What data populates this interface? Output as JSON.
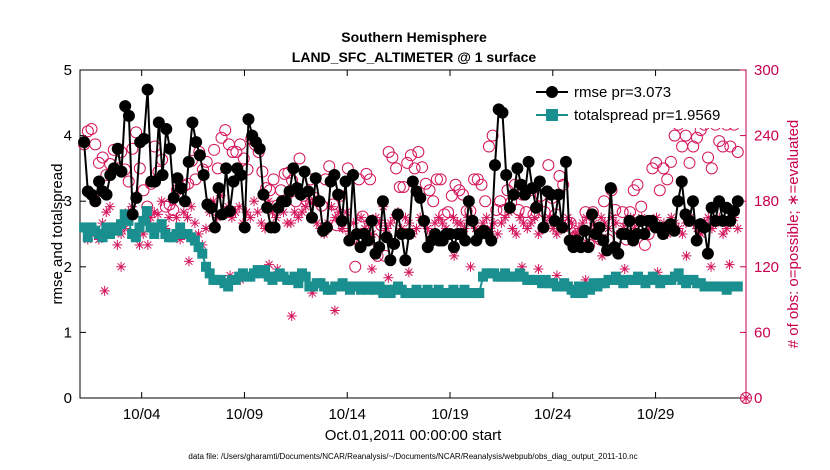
{
  "chart_data": {
    "type": "line",
    "title": "Southern Hemisphere",
    "subtitle": "LAND_SFC_ALTIMETER @ 1 surface",
    "xlabel": "Oct.01,2011 00:00:00 start",
    "ylabel": "rmse and totalspread",
    "ylabel_right": "# of obs: o=possible; ∗=evaluated",
    "footnote": "data file: /Users/gharamti/Documents/NCAR/Reanalysis/~/Documents/NCAR/Reanalysis/webpub/obs_diag_output_2011-10.nc",
    "xlim": [
      1,
      33.4
    ],
    "ylim": [
      0,
      5
    ],
    "ylim_right": [
      0,
      300
    ],
    "x_ticks": [
      4,
      9,
      14,
      19,
      24,
      29
    ],
    "x_tick_labels": [
      "10/04",
      "10/09",
      "10/14",
      "10/19",
      "10/24",
      "10/29"
    ],
    "y_ticks": [
      0,
      1,
      2,
      3,
      4,
      5
    ],
    "y_tick_labels": [
      "0",
      "1",
      "2",
      "3",
      "4",
      "5"
    ],
    "y_ticks_right": [
      0,
      60,
      120,
      180,
      240,
      300
    ],
    "y_tick_labels_right": [
      "0",
      "60",
      "120",
      "180",
      "240",
      "300"
    ],
    "grid": false,
    "legend_position": "top-right",
    "colors": {
      "rmse": "#000000",
      "totalspread": "#1a8f8f",
      "obs": "#d4145a"
    },
    "series": [
      {
        "name": "rmse pr=3.073",
        "axis": "left",
        "values": [
          3.9,
          3.15,
          3.1,
          3.0,
          3.3,
          3.15,
          3.1,
          3.4,
          3.5,
          3.8,
          3.45,
          4.45,
          4.3,
          2.8,
          3.05,
          3.9,
          3.95,
          4.7,
          3.3,
          3.3,
          4.2,
          3.4,
          4.1,
          3.8,
          3.05,
          3.35,
          3.2,
          3.0,
          3.6,
          4.2,
          3.9,
          3.7,
          3.4,
          2.95,
          2.9,
          2.6,
          3.2,
          2.8,
          3.5,
          2.85,
          3.3,
          3.5,
          3.4,
          2.6,
          4.25,
          4.0,
          3.9,
          3.8,
          3.1,
          2.9,
          2.6,
          2.6,
          2.9,
          3.0,
          3.0,
          3.15,
          3.5,
          3.2,
          3.1,
          3.45,
          3.15,
          2.75,
          3.35,
          3.0,
          2.55,
          2.6,
          3.3,
          3.4,
          3.1,
          2.7,
          3.3,
          2.4,
          3.4,
          2.5,
          2.3,
          2.5,
          2.4,
          2.7,
          2.2,
          2.3,
          3.0,
          2.45,
          2.1,
          2.35,
          2.8,
          2.5,
          2.1,
          2.5,
          3.3,
          3.15,
          3.05,
          2.7,
          2.3,
          2.4,
          2.5,
          2.4,
          2.4,
          2.5,
          2.5,
          2.3,
          2.5,
          2.5,
          2.4,
          3.0,
          2.7,
          2.4,
          2.5,
          2.55,
          2.5,
          2.4,
          3.55,
          4.4,
          4.35,
          3.4,
          2.9,
          3.1,
          3.5,
          3.25,
          3.1,
          3.6,
          3.2,
          2.9,
          3.3,
          2.6,
          3.15,
          3.1,
          2.7,
          3.1,
          2.6,
          3.6,
          2.4,
          2.3,
          2.4,
          2.3,
          2.55,
          2.3,
          2.8,
          2.5,
          2.6,
          2.4,
          2.25,
          3.2,
          2.3,
          2.2,
          2.5,
          2.5,
          2.7,
          2.4,
          2.5,
          2.7,
          2.5,
          2.7,
          2.7,
          2.6,
          2.6,
          2.5,
          2.6,
          2.65,
          2.55,
          3.0,
          3.3,
          2.8,
          2.7,
          3.0,
          2.4,
          2.65,
          2.6,
          2.2,
          2.9,
          2.7,
          3.0,
          2.7,
          2.9,
          2.7,
          2.85,
          3.0
        ]
      },
      {
        "name": "totalspread pr=1.9569",
        "axis": "left",
        "values": [
          2.6,
          2.45,
          2.6,
          2.55,
          2.5,
          2.45,
          2.6,
          2.5,
          2.6,
          2.55,
          2.65,
          2.8,
          2.7,
          2.5,
          2.45,
          2.6,
          2.7,
          2.85,
          2.6,
          2.5,
          2.6,
          2.65,
          2.5,
          2.45,
          2.45,
          2.5,
          2.6,
          2.5,
          2.5,
          2.45,
          2.4,
          2.3,
          2.2,
          2.0,
          1.9,
          1.8,
          1.8,
          1.8,
          1.75,
          1.7,
          1.8,
          1.8,
          1.85,
          1.9,
          1.85,
          1.85,
          1.9,
          1.95,
          1.9,
          1.95,
          1.85,
          1.8,
          1.85,
          1.9,
          1.85,
          1.8,
          1.8,
          1.85,
          1.75,
          1.9,
          1.85,
          1.7,
          1.7,
          1.75,
          1.75,
          1.7,
          1.65,
          1.65,
          1.7,
          1.7,
          1.75,
          1.7,
          1.65,
          1.7,
          1.7,
          1.65,
          1.7,
          1.65,
          1.7,
          1.65,
          1.7,
          1.6,
          1.65,
          1.6,
          1.65,
          1.7,
          1.65,
          1.6,
          1.6,
          1.6,
          1.65,
          1.6,
          1.6,
          1.65,
          1.6,
          1.6,
          1.65,
          1.6,
          1.6,
          1.6,
          1.65,
          1.6,
          1.6,
          1.65,
          1.6,
          1.6,
          1.6,
          1.6,
          1.85,
          1.9,
          1.9,
          1.9,
          1.85,
          1.85,
          1.9,
          1.85,
          1.85,
          1.85,
          1.9,
          1.85,
          1.8,
          1.8,
          1.8,
          1.8,
          1.75,
          1.8,
          1.75,
          1.75,
          1.7,
          1.7,
          1.75,
          1.7,
          1.65,
          1.6,
          1.7,
          1.6,
          1.7,
          1.65,
          1.75,
          1.7,
          1.75,
          1.75,
          1.8,
          1.8,
          1.85,
          1.8,
          1.75,
          1.8,
          1.8,
          1.8,
          1.85,
          1.8,
          1.75,
          1.8,
          1.85,
          1.8,
          1.75,
          1.8,
          1.8,
          1.8,
          1.85,
          1.9,
          1.8,
          1.75,
          1.8,
          1.8,
          1.75,
          1.75,
          1.7,
          1.7,
          1.7,
          1.7,
          1.7,
          1.7,
          1.65,
          1.7,
          1.7,
          1.7
        ]
      },
      {
        "name": "obs possible",
        "axis": "right",
        "marker": "circle",
        "values": [
          232,
          244,
          246,
          232,
          215,
          220,
          204,
          214,
          227,
          210,
          225,
          209,
          198,
          228,
          243,
          210,
          190,
          175,
          196,
          230,
          207,
          218,
          175,
          177,
          172,
          190,
          192,
          194,
          196,
          217,
          200,
          225,
          209,
          216,
          175,
          227,
          210,
          238,
          245,
          232,
          225,
          225,
          232,
          219,
          209,
          237,
          232,
          225,
          207,
          192,
          190,
          200,
          176,
          190,
          205,
          206,
          199,
          180,
          219,
          185,
          180,
          200,
          183,
          180,
          176,
          200,
          212,
          177,
          158,
          185,
          157,
          210,
          145,
          120,
          200,
          166,
          205,
          200,
          145,
          130,
          158,
          130,
          225,
          220,
          210,
          193,
          193,
          215,
          222,
          210,
          225,
          211,
          196,
          190,
          180,
          200,
          200,
          168,
          170,
          185,
          195,
          190,
          186,
          171,
          171,
          200,
          200,
          195,
          180,
          230,
          240,
          172,
          180,
          172,
          190,
          179,
          195,
          172,
          186,
          170,
          190,
          168,
          175,
          185,
          170,
          213,
          183,
          168,
          203,
          195,
          158,
          160,
          147,
          150,
          140,
          170,
          140,
          170,
          148,
          145,
          180,
          145,
          190,
          172,
          155,
          170,
          145,
          170,
          190,
          195,
          175,
          140,
          150,
          210,
          215,
          190,
          210,
          200,
          216,
          240,
          250,
          230,
          240,
          215,
          230,
          238,
          245,
          250,
          220,
          210,
          250,
          235,
          230,
          250,
          230,
          250,
          225
        ]
      },
      {
        "name": "obs evaluated",
        "axis": "right",
        "marker": "asterisk",
        "values": [
          155,
          145,
          150,
          185,
          145,
          160,
          170,
          175,
          155,
          140,
          150,
          155,
          170,
          175,
          185,
          140,
          150,
          162,
          165,
          170,
          168,
          180,
          155,
          165,
          180,
          165,
          145,
          170,
          165,
          175,
          160,
          150,
          140,
          155,
          170,
          180,
          165,
          185,
          170,
          175,
          165,
          170,
          175,
          160,
          170,
          165,
          180,
          170,
          160,
          155,
          180,
          170,
          165,
          175,
          170,
          160,
          160,
          170,
          165,
          170,
          175,
          180,
          165,
          160,
          155,
          150,
          160,
          175,
          165,
          170,
          155,
          170,
          150,
          160,
          150,
          165,
          155,
          160,
          150,
          165,
          160,
          175,
          155,
          160,
          165,
          170,
          155,
          165,
          160,
          150,
          155,
          165,
          160,
          155,
          150,
          160,
          165,
          160,
          155,
          150,
          165,
          160,
          160,
          155,
          165,
          160,
          155,
          150,
          160,
          165,
          155,
          160,
          150,
          160,
          165,
          170,
          155,
          150,
          165,
          160,
          155,
          160,
          165,
          150,
          155,
          160,
          165,
          155,
          150,
          160,
          155,
          165,
          160,
          150,
          155,
          160,
          165,
          155,
          160,
          150,
          165,
          160,
          155,
          165,
          160,
          150,
          155,
          160,
          165,
          155,
          160,
          165,
          150,
          155,
          160,
          165,
          155,
          160,
          150,
          165,
          160,
          155,
          150,
          160,
          165,
          160,
          155,
          150,
          160,
          165,
          155,
          160,
          165,
          150,
          155,
          160,
          165,
          155
        ]
      },
      {
        "name": "obs evaluated (scattered low points)",
        "axis": "right",
        "marker": "asterisk",
        "x": [
          2.2,
          3.0,
          4.3,
          6.3,
          8.3,
          8.8,
          10.2,
          10.6,
          11.3,
          12.3,
          13.4,
          15.2,
          16.0,
          17.0,
          19.2,
          20.0,
          22.5,
          23.3,
          24.2,
          25.6,
          26.4,
          27.5,
          29.1,
          30.5,
          31.7,
          32.6
        ],
        "values": [
          98,
          120,
          140,
          125,
          112,
          108,
          122,
          118,
          75,
          96,
          80,
          118,
          110,
          115,
          130,
          120,
          120,
          118,
          112,
          108,
          130,
          118,
          115,
          130,
          120,
          122
        ]
      }
    ],
    "legend": [
      {
        "label": "rmse pr=3.073",
        "series": "rmse"
      },
      {
        "label": "totalspread pr=1.9569",
        "series": "totalspread"
      }
    ]
  }
}
